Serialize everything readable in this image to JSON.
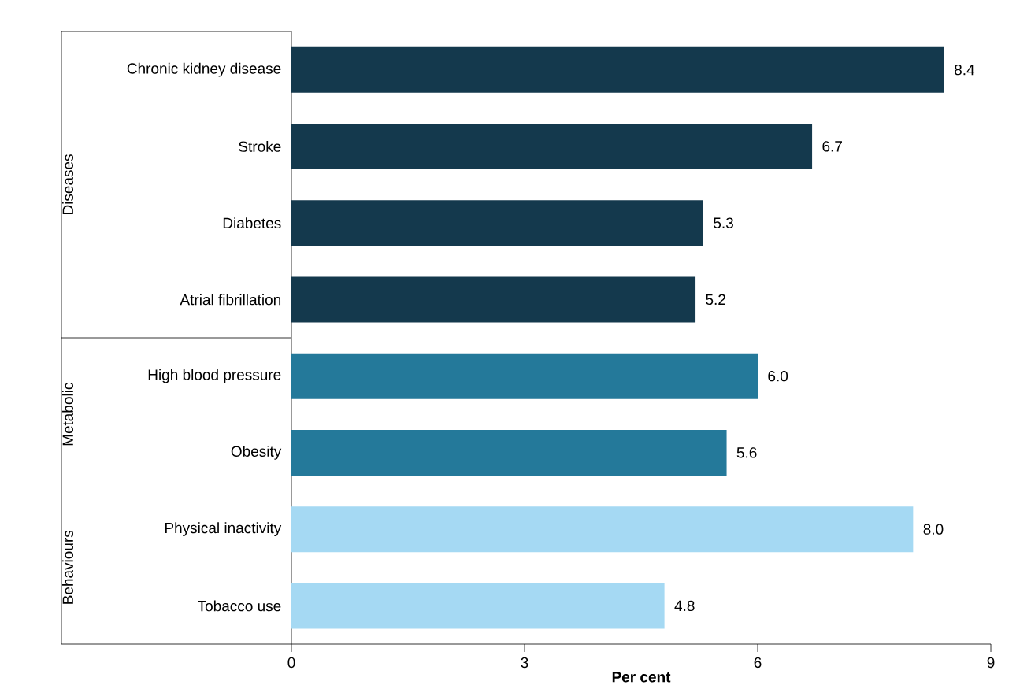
{
  "chart_data": {
    "type": "bar",
    "orientation": "horizontal",
    "categories": [
      "Chronic kidney disease",
      "Stroke",
      "Diabetes",
      "Atrial fibrillation",
      "High blood pressure",
      "Obesity",
      "Physical inactivity",
      "Tobacco use"
    ],
    "values": [
      8.4,
      6.7,
      5.3,
      5.2,
      6.0,
      5.6,
      8.0,
      4.8
    ],
    "value_labels": [
      "8.4",
      "6.7",
      "5.3",
      "5.2",
      "6.0",
      "5.6",
      "8.0",
      "4.8"
    ],
    "colors": [
      "#14394d",
      "#14394d",
      "#14394d",
      "#14394d",
      "#24799a",
      "#24799a",
      "#a5d9f3",
      "#a5d9f3"
    ],
    "xlabel": "Per cent",
    "xlim": [
      0,
      9
    ],
    "xticks": [
      0,
      3,
      6,
      9
    ],
    "annotations": [
      "Diseases",
      "Metabolic",
      "Behaviours"
    ]
  }
}
